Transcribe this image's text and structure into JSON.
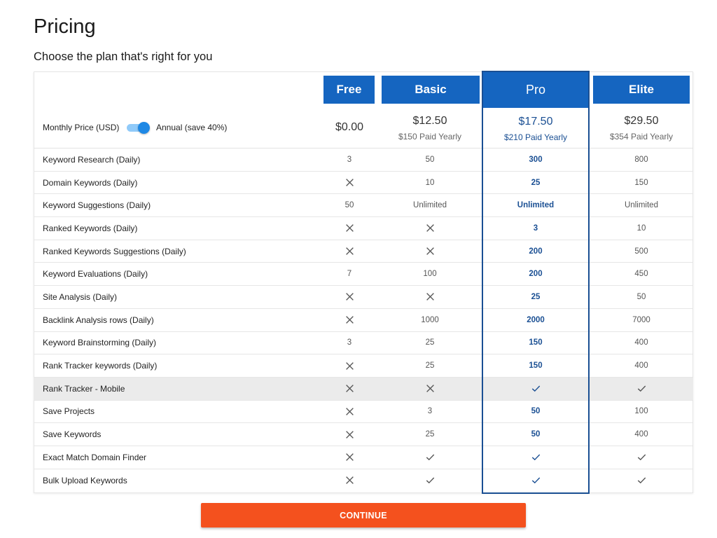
{
  "page": {
    "title": "Pricing",
    "subtitle": "Choose the plan that's right for you"
  },
  "plans": [
    {
      "key": "free",
      "name": "Free",
      "price": "$0.00",
      "billed": ""
    },
    {
      "key": "basic",
      "name": "Basic",
      "price": "$12.50",
      "billed": "$150 Paid Yearly"
    },
    {
      "key": "pro",
      "name": "Pro",
      "price": "$17.50",
      "billed": "$210 Paid Yearly"
    },
    {
      "key": "elite",
      "name": "Elite",
      "price": "$29.50",
      "billed": "$354 Paid Yearly"
    }
  ],
  "billing_toggle": {
    "monthly_label": "Monthly Price (USD)",
    "annual_label": "Annual (save 40%)",
    "selected": "annual"
  },
  "colors": {
    "plan_header": "#1565c0",
    "pro_accent": "#1a4f93",
    "toggle_on": "#1e88e5",
    "continue_button": "#f4511e"
  },
  "features": [
    {
      "name": "Keyword Research (Daily)",
      "values": [
        "3",
        "50",
        "300",
        "800"
      ]
    },
    {
      "name": "Domain Keywords (Daily)",
      "values": [
        "x",
        "10",
        "25",
        "150"
      ]
    },
    {
      "name": "Keyword Suggestions (Daily)",
      "values": [
        "50",
        "Unlimited",
        "Unlimited",
        "Unlimited"
      ]
    },
    {
      "name": "Ranked Keywords (Daily)",
      "values": [
        "x",
        "x",
        "3",
        "10"
      ]
    },
    {
      "name": "Ranked Keywords Suggestions (Daily)",
      "values": [
        "x",
        "x",
        "200",
        "500"
      ]
    },
    {
      "name": "Keyword Evaluations (Daily)",
      "values": [
        "7",
        "100",
        "200",
        "450"
      ]
    },
    {
      "name": "Site Analysis (Daily)",
      "values": [
        "x",
        "x",
        "25",
        "50"
      ]
    },
    {
      "name": "Backlink Analysis rows (Daily)",
      "values": [
        "x",
        "1000",
        "2000",
        "7000"
      ]
    },
    {
      "name": "Keyword Brainstorming (Daily)",
      "values": [
        "3",
        "25",
        "150",
        "400"
      ]
    },
    {
      "name": "Rank Tracker keywords (Daily)",
      "values": [
        "x",
        "25",
        "150",
        "400"
      ]
    },
    {
      "name": "Rank Tracker - Mobile",
      "values": [
        "x",
        "x",
        "check",
        "check"
      ],
      "highlighted": true
    },
    {
      "name": "Save Projects",
      "values": [
        "x",
        "3",
        "50",
        "100"
      ]
    },
    {
      "name": "Save Keywords",
      "values": [
        "x",
        "25",
        "50",
        "400"
      ]
    },
    {
      "name": "Exact Match Domain Finder",
      "values": [
        "x",
        "check",
        "check",
        "check"
      ]
    },
    {
      "name": "Bulk Upload Keywords",
      "values": [
        "x",
        "check",
        "check",
        "check"
      ]
    }
  ],
  "icons": {
    "unavailable": "close-icon",
    "available": "check-icon"
  },
  "continue_label": "CONTINUE"
}
